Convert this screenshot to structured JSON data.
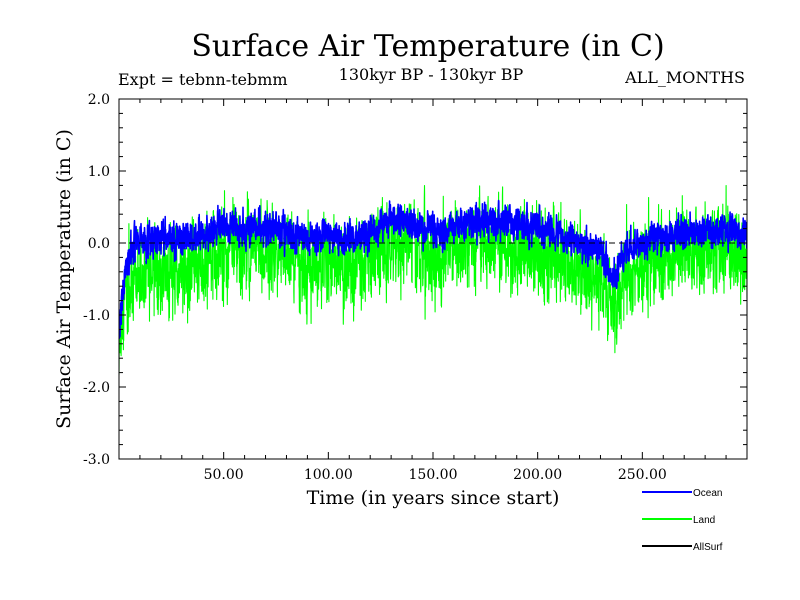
{
  "chart_data": {
    "type": "line",
    "title": "Surface Air Temperature (in C)",
    "subtitle_left": "Expt = tebnn-tebmm",
    "subtitle_center": "130kyr BP - 130kyr BP",
    "subtitle_right": "ALL_MONTHS",
    "xlabel": "Time (in years since start)",
    "ylabel": "Surface Air Temperature (in C)",
    "xlim": [
      0,
      300
    ],
    "ylim": [
      -3.0,
      2.0
    ],
    "x_ticks": [
      50,
      100,
      150,
      200,
      250
    ],
    "x_tick_labels": [
      "50.00",
      "100.00",
      "150.00",
      "200.00",
      "250.00"
    ],
    "y_ticks": [
      -3.0,
      -2.0,
      -1.0,
      0.0,
      1.0,
      2.0
    ],
    "y_tick_labels": [
      "-3.0",
      "-2.0",
      "-1.0",
      "0.0",
      "1.0",
      "2.0"
    ],
    "reference_line_y": 0.0,
    "samples_per_year": 12,
    "series": [
      {
        "name": "Ocean",
        "color": "#0000ff",
        "noise_amplitude": 0.28,
        "mean_profile": [
          {
            "x": 0,
            "y": -1.2
          },
          {
            "x": 3,
            "y": -0.35
          },
          {
            "x": 8,
            "y": 0.0
          },
          {
            "x": 20,
            "y": 0.05
          },
          {
            "x": 40,
            "y": 0.1
          },
          {
            "x": 50,
            "y": 0.25
          },
          {
            "x": 60,
            "y": 0.2
          },
          {
            "x": 75,
            "y": 0.2
          },
          {
            "x": 90,
            "y": 0.05
          },
          {
            "x": 100,
            "y": 0.15
          },
          {
            "x": 115,
            "y": 0.05
          },
          {
            "x": 130,
            "y": 0.35
          },
          {
            "x": 150,
            "y": 0.15
          },
          {
            "x": 170,
            "y": 0.3
          },
          {
            "x": 190,
            "y": 0.3
          },
          {
            "x": 210,
            "y": 0.1
          },
          {
            "x": 230,
            "y": -0.1
          },
          {
            "x": 236,
            "y": -0.5
          },
          {
            "x": 242,
            "y": -0.1
          },
          {
            "x": 255,
            "y": 0.05
          },
          {
            "x": 270,
            "y": 0.15
          },
          {
            "x": 290,
            "y": 0.2
          },
          {
            "x": 300,
            "y": 0.1
          }
        ]
      },
      {
        "name": "Land",
        "color": "#00ff00",
        "noise_amplitude": 0.75,
        "mean_profile": [
          {
            "x": 0,
            "y": -1.5
          },
          {
            "x": 3,
            "y": -0.8
          },
          {
            "x": 8,
            "y": -0.45
          },
          {
            "x": 20,
            "y": -0.4
          },
          {
            "x": 40,
            "y": -0.3
          },
          {
            "x": 50,
            "y": -0.1
          },
          {
            "x": 60,
            "y": -0.05
          },
          {
            "x": 75,
            "y": -0.1
          },
          {
            "x": 90,
            "y": -0.3
          },
          {
            "x": 100,
            "y": -0.25
          },
          {
            "x": 115,
            "y": -0.3
          },
          {
            "x": 130,
            "y": 0.0
          },
          {
            "x": 150,
            "y": -0.15
          },
          {
            "x": 170,
            "y": 0.0
          },
          {
            "x": 190,
            "y": -0.05
          },
          {
            "x": 210,
            "y": -0.25
          },
          {
            "x": 230,
            "y": -0.5
          },
          {
            "x": 236,
            "y": -0.95
          },
          {
            "x": 242,
            "y": -0.5
          },
          {
            "x": 255,
            "y": -0.25
          },
          {
            "x": 270,
            "y": -0.15
          },
          {
            "x": 290,
            "y": -0.1
          },
          {
            "x": 300,
            "y": -0.15
          }
        ]
      },
      {
        "name": "AllSurf",
        "color": "#000000",
        "noise_amplitude": 0,
        "mean_profile": []
      }
    ],
    "legend_position": "bottom-right"
  }
}
